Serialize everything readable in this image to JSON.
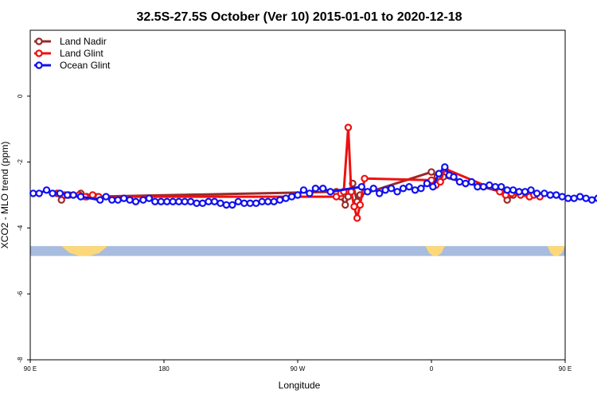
{
  "chart_data": {
    "type": "line",
    "title": "32.5S-27.5S October (Ver 10)   2015-01-01 to 2020-12-18",
    "xlabel": "Longitude",
    "ylabel": "XCO2 - MLO trend (ppm)",
    "xlim": [
      90,
      450
    ],
    "ylim": [
      -8,
      2
    ],
    "x_ticks": [
      {
        "value": 90,
        "label": "90 E"
      },
      {
        "value": 180,
        "label": "180"
      },
      {
        "value": 270,
        "label": "90 W"
      },
      {
        "value": 360,
        "label": "0"
      },
      {
        "value": 450,
        "label": "90 E"
      },
      {
        "value": 540,
        "label": "180"
      }
    ],
    "y_ticks": [
      {
        "value": 0,
        "label": "0"
      },
      {
        "value": -2,
        "label": "-2"
      },
      {
        "value": -4,
        "label": "-4"
      },
      {
        "value": -6,
        "label": "-6"
      },
      {
        "value": -8,
        "label": "-8"
      }
    ],
    "legend_position": "top-left",
    "land_band": {
      "y_top": -4.55,
      "y_bottom": -4.85,
      "ocean_color": "#a7bcde",
      "land_color": "#fcd87a",
      "land_segments": [
        [
          111,
          142
        ],
        [
          356,
          369
        ],
        [
          438,
          469
        ],
        [
          652,
          684
        ],
        [
          727,
          744
        ],
        [
          829,
          848
        ]
      ]
    },
    "series": [
      {
        "name": "Land Nadir",
        "color": "#9a2a2a",
        "x": [
          108,
          111,
          116,
          124,
          128,
          134,
          296,
          299,
          302,
          304,
          307,
          310,
          312,
          360,
          364,
          368,
          407,
          411,
          415,
          421,
          426
        ],
        "y": [
          -2.95,
          -3.15,
          -3.0,
          -2.95,
          -3.05,
          -3.05,
          -2.9,
          -3.05,
          -3.3,
          -3.05,
          -2.65,
          -3.2,
          -3.0,
          -2.3,
          -2.45,
          -2.45,
          -2.9,
          -3.15,
          -3.0,
          -2.95,
          -3.05
        ]
      },
      {
        "name": "Land Glint",
        "color": "#ee1111",
        "x": [
          109,
          113,
          123,
          127,
          132,
          136,
          296,
          299,
          301,
          304,
          306,
          308,
          310,
          312,
          315,
          360,
          363,
          366,
          369,
          406,
          410,
          414,
          420,
          426,
          429,
          433
        ],
        "y": [
          -2.95,
          -3.0,
          -3.0,
          -3.05,
          -3.0,
          -3.05,
          -3.05,
          -2.95,
          -2.9,
          -0.95,
          -2.9,
          -3.35,
          -3.7,
          -3.3,
          -2.5,
          -2.55,
          -2.7,
          -2.6,
          -2.2,
          -2.9,
          -3.0,
          -2.95,
          -3.0,
          -3.05,
          -3.0,
          -3.05
        ]
      },
      {
        "name": "Ocean Glint",
        "color": "#1111ee",
        "x": [
          92,
          96,
          101,
          105,
          110,
          115,
          119,
          124,
          137,
          141,
          145,
          149,
          153,
          157,
          161,
          166,
          170,
          174,
          178,
          182,
          186,
          190,
          194,
          198,
          202,
          206,
          210,
          214,
          218,
          222,
          226,
          230,
          234,
          238,
          242,
          246,
          250,
          254,
          258,
          262,
          266,
          270,
          274,
          278,
          282,
          287,
          292,
          313,
          317,
          321,
          325,
          329,
          333,
          337,
          341,
          345,
          349,
          353,
          357,
          361,
          365,
          369,
          372,
          375,
          379,
          383,
          387,
          391,
          395,
          399,
          403,
          407,
          411,
          415,
          419,
          423,
          427,
          431,
          436,
          440,
          444,
          448,
          452,
          456,
          460,
          464,
          468,
          472,
          476,
          480
        ],
        "y": [
          -2.95,
          -2.95,
          -2.85,
          -2.95,
          -2.95,
          -3.0,
          -3.0,
          -3.05,
          -3.15,
          -3.05,
          -3.15,
          -3.15,
          -3.1,
          -3.15,
          -3.2,
          -3.15,
          -3.1,
          -3.2,
          -3.2,
          -3.2,
          -3.2,
          -3.2,
          -3.2,
          -3.2,
          -3.25,
          -3.25,
          -3.2,
          -3.2,
          -3.25,
          -3.3,
          -3.3,
          -3.2,
          -3.25,
          -3.25,
          -3.25,
          -3.2,
          -3.2,
          -3.2,
          -3.15,
          -3.1,
          -3.05,
          -3.0,
          -2.85,
          -2.95,
          -2.8,
          -2.8,
          -2.9,
          -2.75,
          -2.9,
          -2.8,
          -2.95,
          -2.85,
          -2.8,
          -2.9,
          -2.8,
          -2.75,
          -2.85,
          -2.8,
          -2.65,
          -2.75,
          -2.35,
          -2.15,
          -2.4,
          -2.45,
          -2.6,
          -2.65,
          -2.6,
          -2.75,
          -2.75,
          -2.7,
          -2.75,
          -2.75,
          -2.85,
          -2.85,
          -2.9,
          -2.9,
          -2.85,
          -2.95,
          -2.95,
          -3.0,
          -3.0,
          -3.05,
          -3.1,
          -3.1,
          -3.05,
          -3.1,
          -3.15,
          -3.1,
          -3.15,
          -3.15
        ]
      }
    ]
  }
}
